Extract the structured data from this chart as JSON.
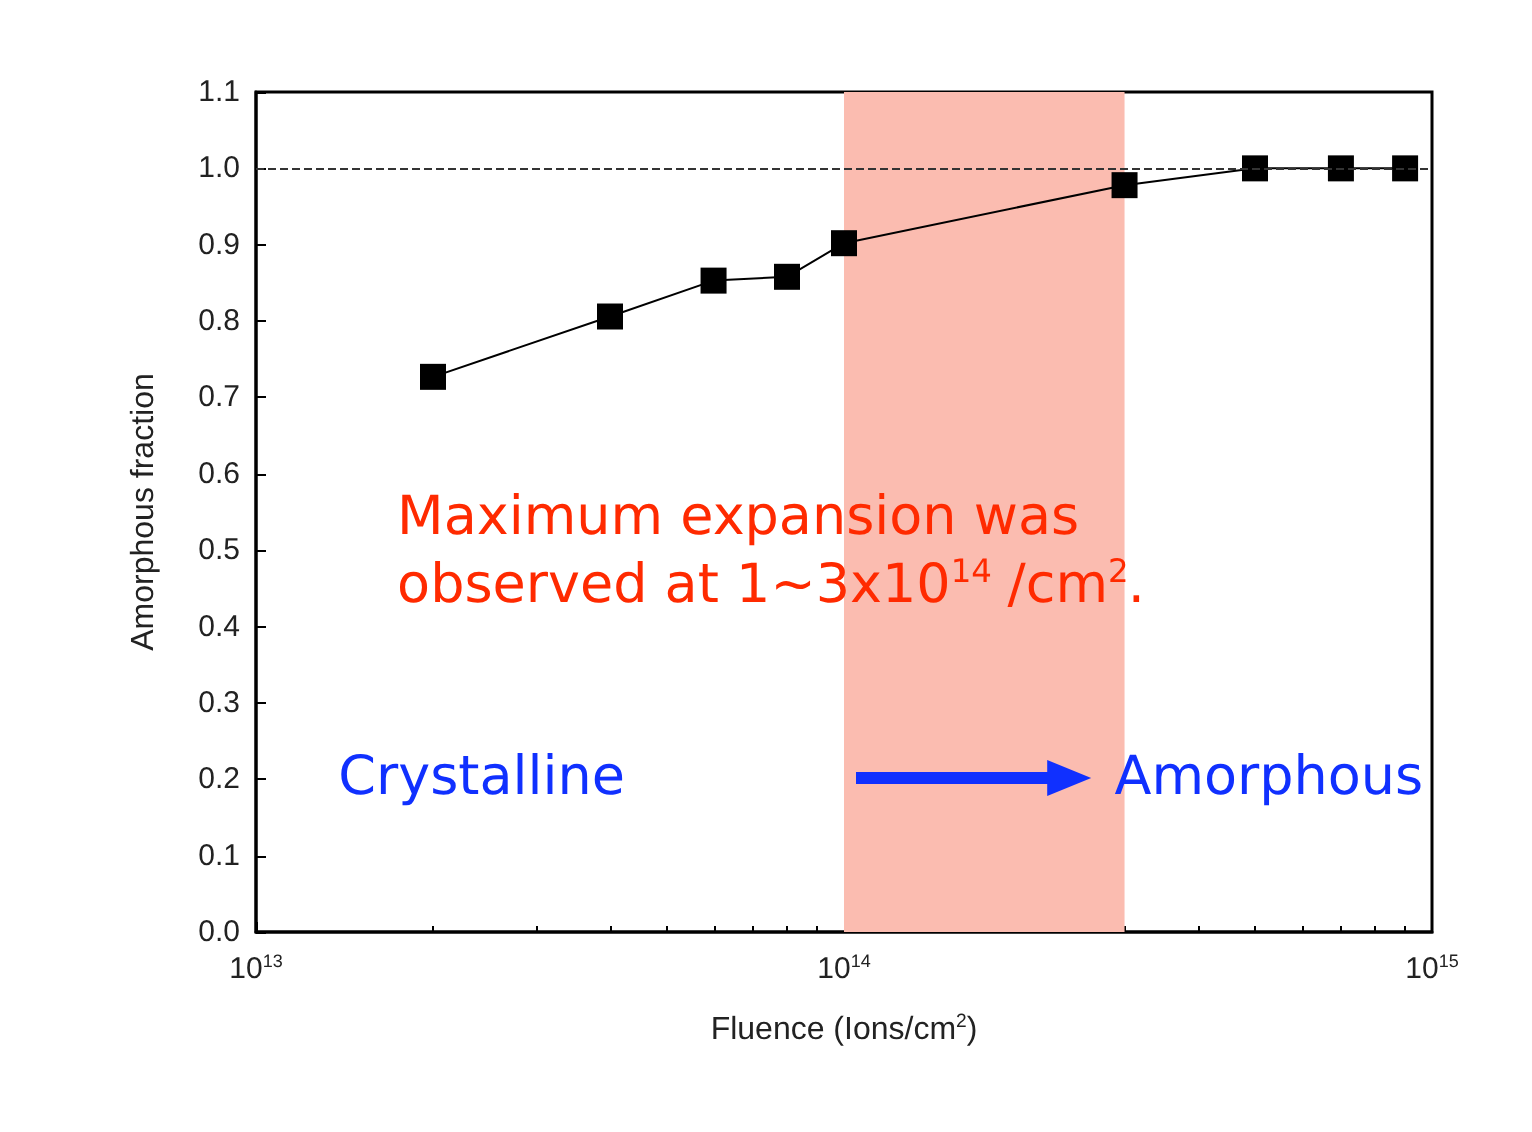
{
  "chart_data": {
    "type": "line",
    "xlabel": "Fluence (Ions/cm$^{2}$)",
    "ylabel": "Amorphous fraction",
    "x": [
      20000000000000.0,
      40000000000000.0,
      60000000000000.0,
      80000000000000.0,
      100000000000000.0,
      300000000000000.0,
      500000000000000.0,
      700000000000000.0,
      900000000000000.0
    ],
    "series": [
      {
        "color": "#000000",
        "values": [
          0.727,
          0.806,
          0.853,
          0.858,
          0.902,
          0.978,
          1.0,
          1.0,
          1.0
        ]
      }
    ],
    "log": "x",
    "marker": "square",
    "line_style": "solid",
    "xlim": [
      10000000000000.0,
      1000000000000000.0
    ],
    "xticks": [
      {
        "value": 10000000000000.0,
        "label": "10$^{13}$"
      },
      {
        "value": 100000000000000.0,
        "label": "10$^{14}$"
      },
      {
        "value": 1000000000000000.0,
        "label": "10$^{15}$"
      }
    ],
    "ylim": [
      0,
      1.1
    ],
    "yticks": [
      {
        "value": 0,
        "label": "0.0"
      },
      0.1,
      0.2,
      0.3,
      0.4,
      0.5,
      0.6,
      0.7,
      0.8,
      0.9,
      {
        "value": 1,
        "label": "1.0"
      },
      1.1
    ],
    "ref_lines": [
      {
        "axis": "y",
        "value": 1.0,
        "line_style": "dashed",
        "color": "#333333"
      }
    ],
    "bands": [
      {
        "axis": "x",
        "from": 100000000000000.0,
        "to": 300000000000000.0,
        "color": "#fbbcb0"
      }
    ],
    "annotations": [
      "Maximum expansion was observed at 1~3x10$^{14}$ /cm$^{2}$.",
      "Crystalline",
      "Amorphous"
    ]
  }
}
